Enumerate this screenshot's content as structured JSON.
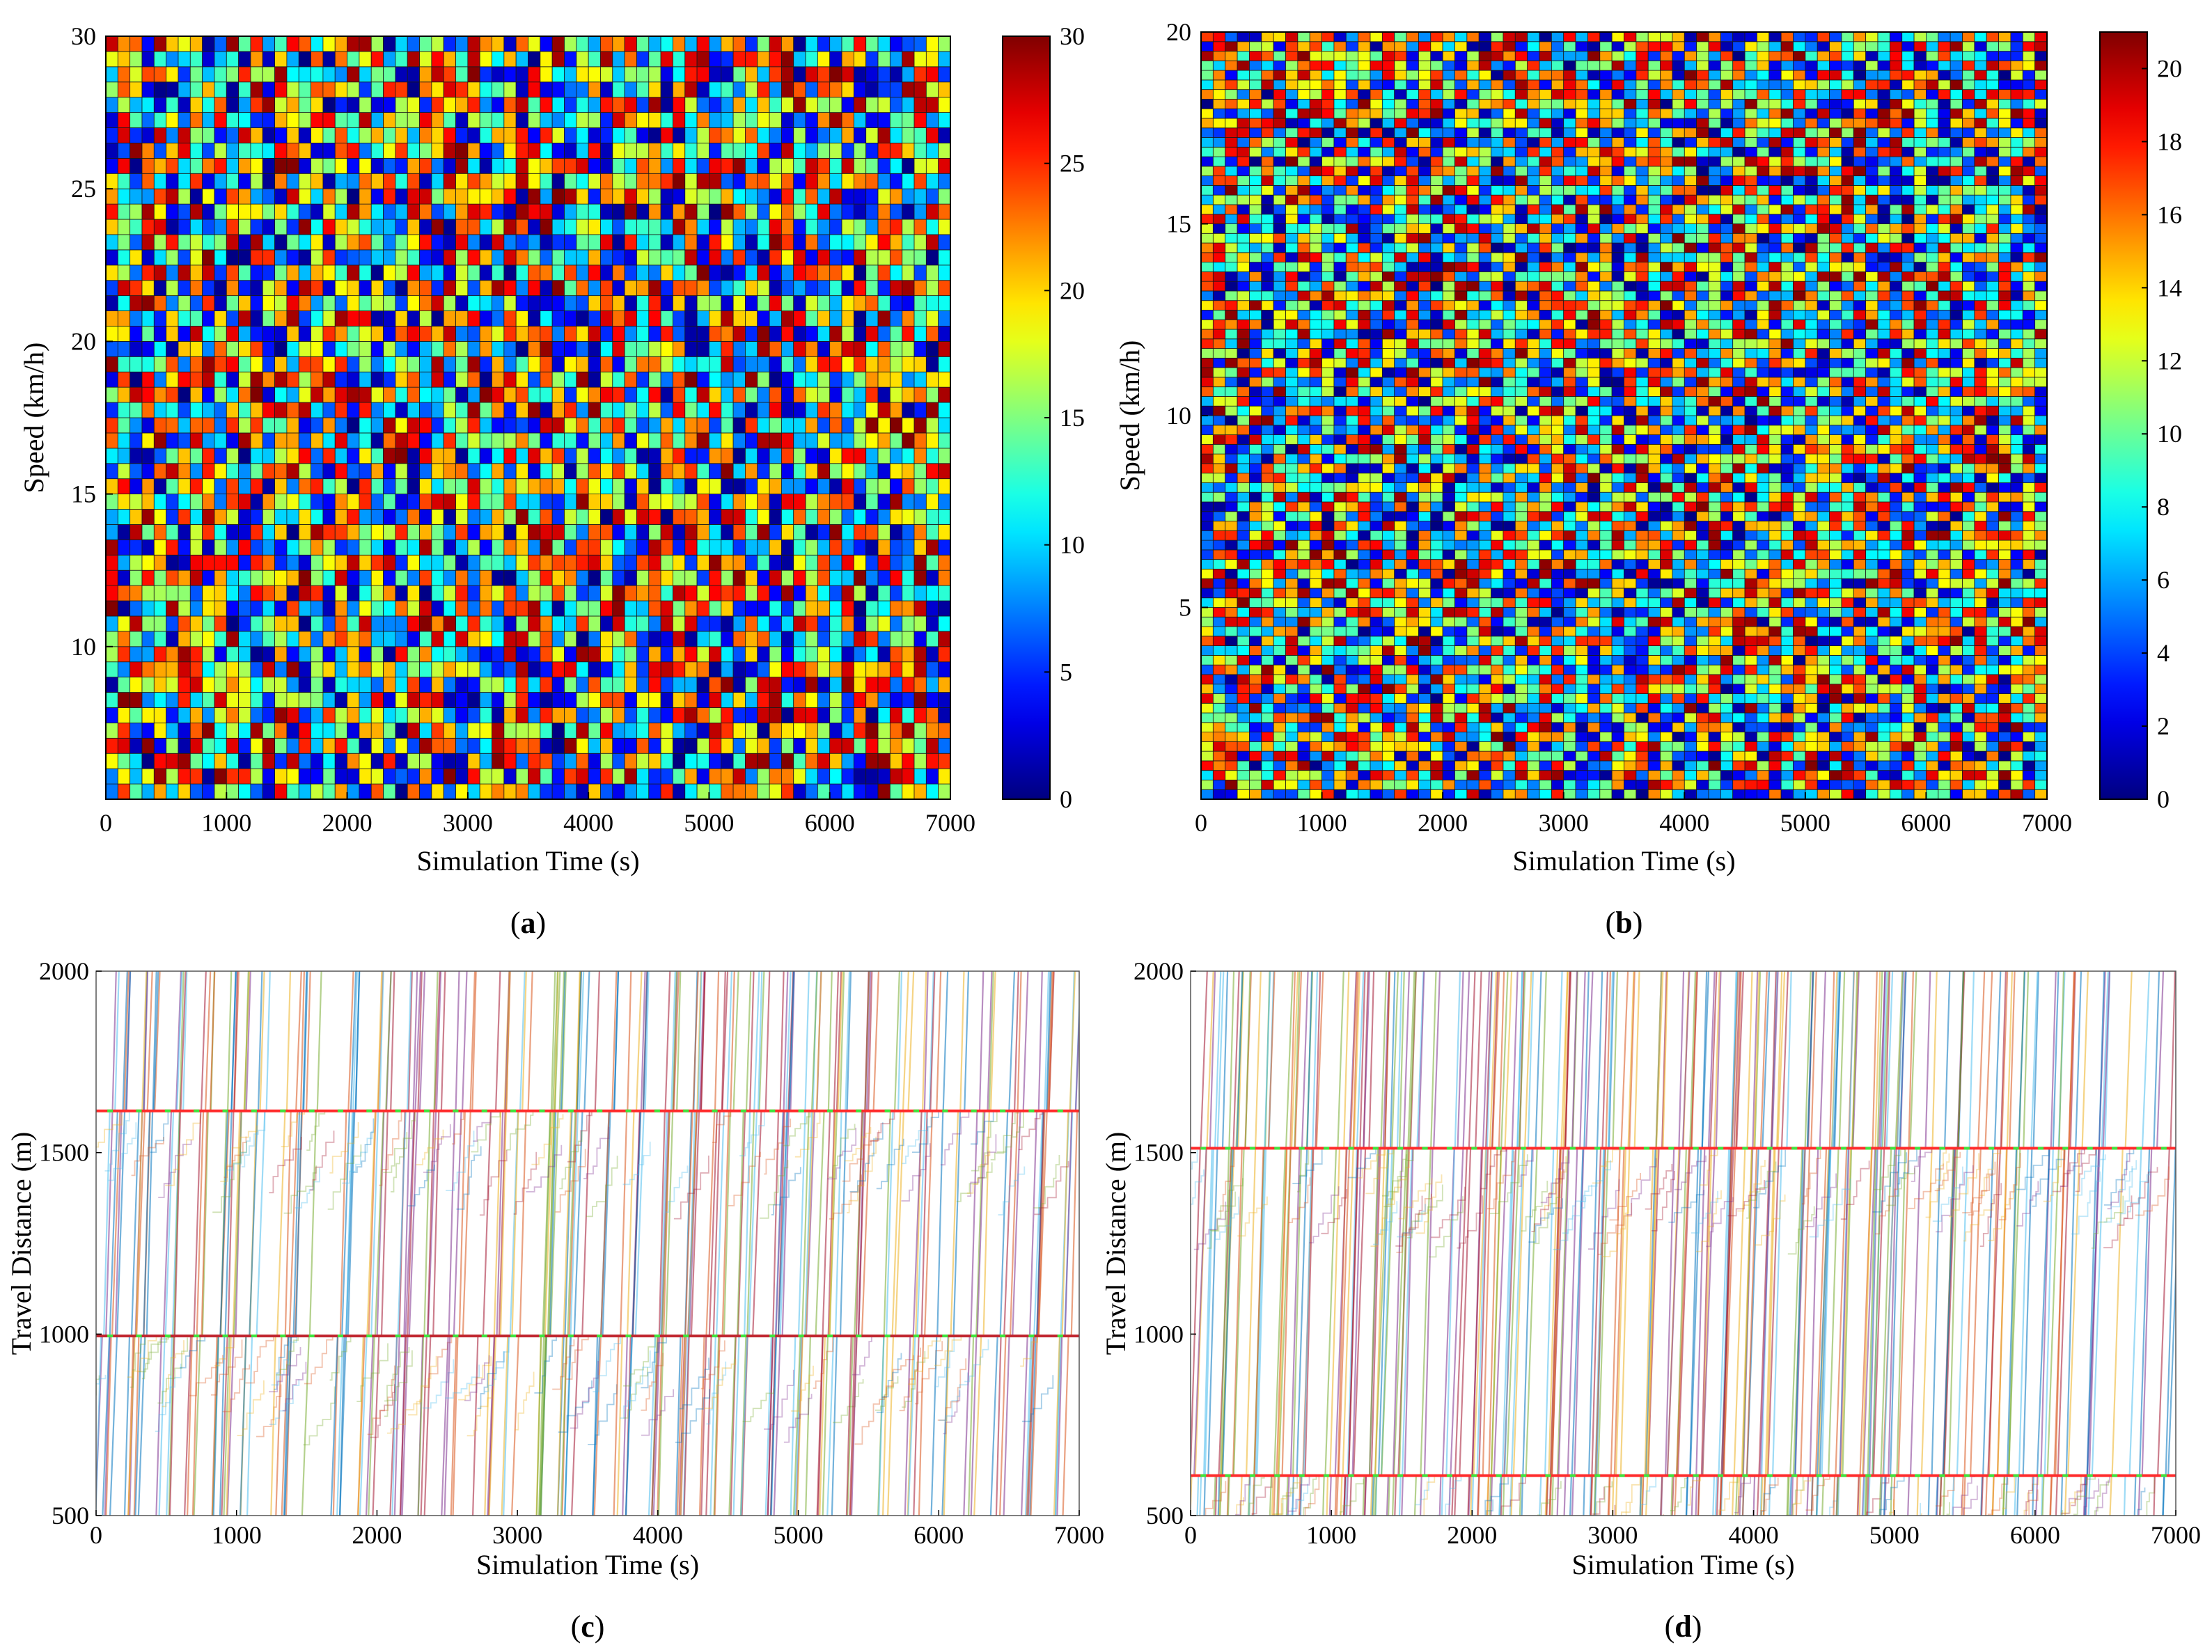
{
  "chart_data": [
    {
      "id": "a",
      "type": "heatmap",
      "caption_letter": "a",
      "xlabel": "Simulation Time (s)",
      "ylabel": "Speed (km/h)",
      "xlim": [
        0,
        7000
      ],
      "ylim": [
        5,
        30
      ],
      "xticks": [
        0,
        1000,
        2000,
        3000,
        4000,
        5000,
        6000,
        7000
      ],
      "yticks": [
        10,
        15,
        20,
        25,
        30
      ],
      "grid": {
        "x_start": 100,
        "x_end": 7000,
        "x_step": 100,
        "y_start": 5.5,
        "y_end": 30,
        "y_step": 0.5
      },
      "colorbar": {
        "min": 0,
        "max": 30,
        "ticks": [
          0,
          5,
          10,
          15,
          20,
          25,
          30
        ],
        "colormap": "jet"
      },
      "seed": 17
    },
    {
      "id": "b",
      "type": "heatmap",
      "caption_letter": "b",
      "xlabel": "Simulation Time (s)",
      "ylabel": "Speed (km/h)",
      "xlim": [
        0,
        7000
      ],
      "ylim": [
        0,
        20
      ],
      "xticks": [
        0,
        1000,
        2000,
        3000,
        4000,
        5000,
        6000,
        7000
      ],
      "yticks": [
        5,
        10,
        15,
        20
      ],
      "grid": {
        "x_start": 100,
        "x_end": 7000,
        "x_step": 100,
        "y_start": 0.25,
        "y_end": 20,
        "y_step": 0.25
      },
      "colorbar": {
        "min": 0,
        "max": 21,
        "ticks": [
          0,
          2,
          4,
          6,
          8,
          10,
          12,
          14,
          16,
          18,
          20
        ],
        "colormap": "jet"
      },
      "seed": 53
    },
    {
      "id": "c",
      "type": "line",
      "caption_letter": "c",
      "xlabel": "Simulation Time (s)",
      "ylabel": "Travel Distance (m)",
      "xlim": [
        0,
        7000
      ],
      "ylim": [
        500,
        2000
      ],
      "xticks": [
        0,
        1000,
        2000,
        3000,
        4000,
        5000,
        6000,
        7000
      ],
      "yticks": [
        500,
        1000,
        1500,
        2000
      ],
      "reference_lines": [
        {
          "y": 1615,
          "color": "#ff2b2b",
          "marker_color": "#3de63d"
        },
        {
          "y": 995,
          "color": "#c0262f",
          "marker_color": "#3de63d"
        }
      ],
      "waves": {
        "count": 34,
        "start": 60,
        "spacing": 205,
        "per_wave": 10
      },
      "seed": 91
    },
    {
      "id": "d",
      "type": "line",
      "caption_letter": "d",
      "xlabel": "Simulation Time (s)",
      "ylabel": "Travel Distance (m)",
      "xlim": [
        0,
        7000
      ],
      "ylim": [
        500,
        2000
      ],
      "xticks": [
        0,
        1000,
        2000,
        3000,
        4000,
        5000,
        6000,
        7000
      ],
      "yticks": [
        500,
        1000,
        1500,
        2000
      ],
      "reference_lines": [
        {
          "y": 1512,
          "color": "#ff2b2b",
          "marker_color": "#3de63d"
        },
        {
          "y": 610,
          "color": "#ff2b2b",
          "marker_color": "#3de63d"
        }
      ],
      "waves": {
        "count": 40,
        "start": 50,
        "spacing": 175,
        "per_wave": 10
      },
      "seed": 137
    }
  ],
  "series_palette": [
    "#0072bd",
    "#d95319",
    "#edb120",
    "#7e2f8e",
    "#77ac30",
    "#4dbeee",
    "#a2142f"
  ],
  "caption_paren_open": "(",
  "caption_paren_close": ")"
}
